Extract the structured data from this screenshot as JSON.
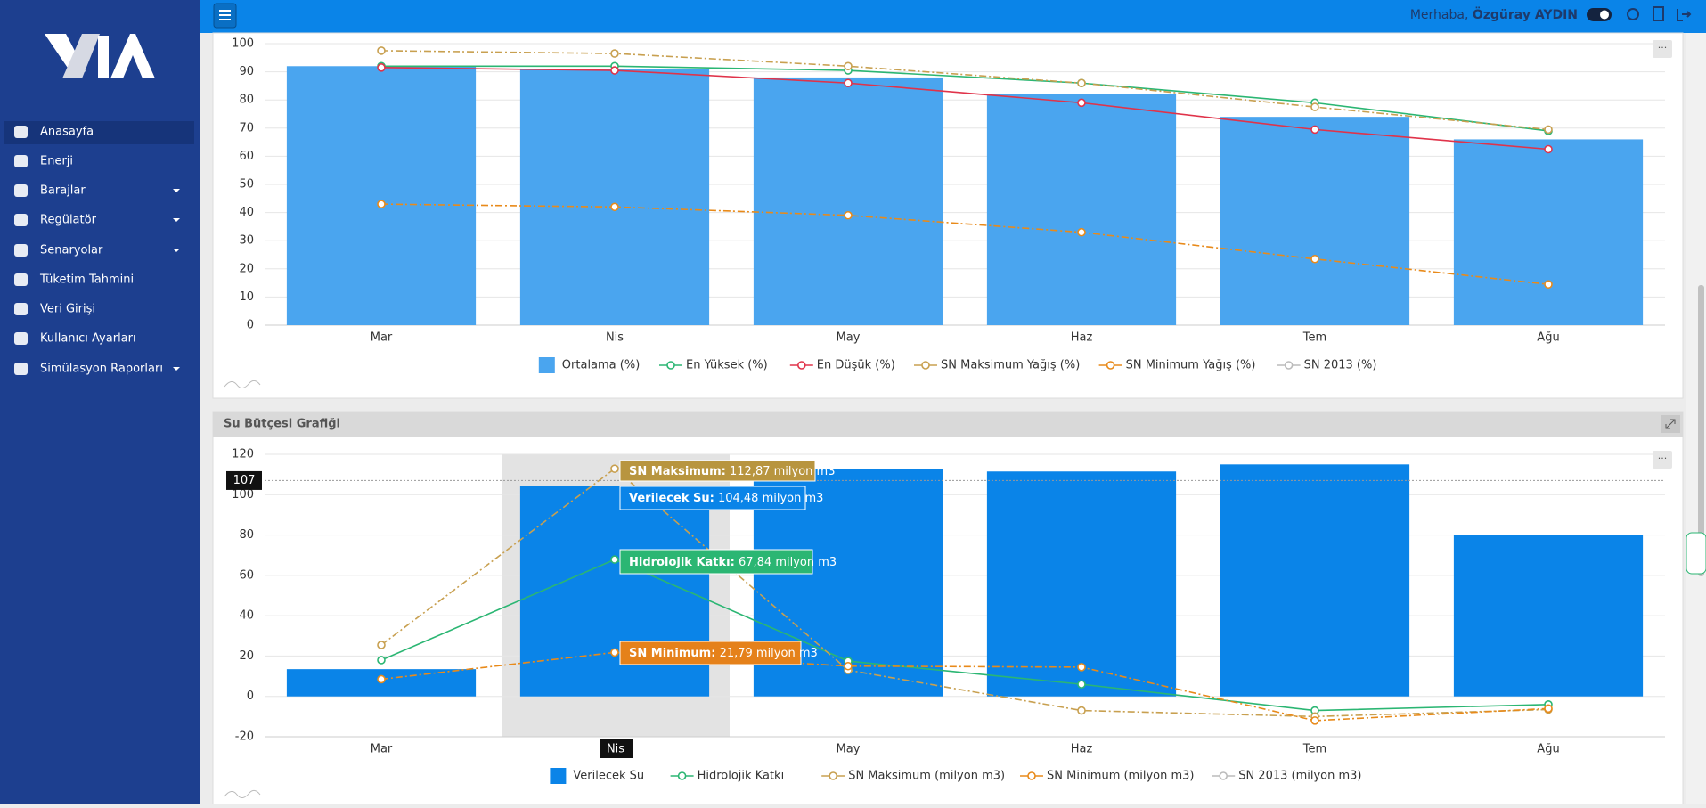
{
  "header": {
    "greeting": "Merhaba,",
    "user": "Özgüray AYDIN"
  },
  "sidebar": {
    "menu": [
      "Anasayfa",
      "Enerji",
      "Barajlar",
      "Regülatör",
      "Senaryolar",
      "Tüketim Tahmini",
      "Veri Girişi",
      "Kullanıcı Ayarları",
      "Simülasyon Raporları"
    ]
  },
  "chart_data": [
    {
      "type": "bar",
      "categories": [
        "Mar",
        "Nis",
        "May",
        "Haz",
        "Tem",
        "Ağu"
      ],
      "ylim": [
        0,
        100
      ],
      "yticks": [
        0,
        10,
        20,
        30,
        40,
        50,
        60,
        70,
        80,
        90,
        100
      ],
      "grid": true,
      "series": [
        {
          "name": "Ortalama (%)",
          "type": "bar",
          "color": "#4aa5ef",
          "values": [
            92,
            91,
            88,
            82,
            74,
            66
          ]
        },
        {
          "name": "En Yüksek (%)",
          "type": "line",
          "color": "#2bb673",
          "values": [
            92,
            92,
            90.5,
            86,
            79,
            69
          ]
        },
        {
          "name": "En Düşük (%)",
          "type": "line",
          "color": "#e0334a",
          "values": [
            91.5,
            90.5,
            86,
            79,
            69.5,
            62.5
          ]
        },
        {
          "name": "SN Maksimum Yağış (%)",
          "type": "line",
          "dash": true,
          "color": "#c8a050",
          "values": [
            97.5,
            96.5,
            92,
            86,
            77.5,
            69.5
          ]
        },
        {
          "name": "SN Minimum Yağış (%)",
          "type": "line",
          "dash": true,
          "color": "#e88a1a",
          "values": [
            43,
            42,
            39,
            33,
            23.5,
            14.5
          ]
        },
        {
          "name": "SN 2013 (%)",
          "type": "line",
          "hidden": true,
          "color": "#aaaaaa"
        }
      ]
    },
    {
      "type": "bar",
      "title": "Su Bütçesi Grafiği",
      "categories": [
        "Mar",
        "Nis",
        "May",
        "Haz",
        "Tem",
        "Ağu"
      ],
      "ylim": [
        -20,
        120
      ],
      "yticks": [
        -20,
        0,
        20,
        40,
        60,
        80,
        100,
        120
      ],
      "grid": true,
      "crosshair_y": 107,
      "tooltip": [
        "SN Maksimum:",
        "Verilecek Su:",
        "Hidrolojik Katkı:",
        "SN Minimum:"
      ],
      "series": [
        {
          "name": "Verilecek Su",
          "type": "bar",
          "color": "#0a84e8",
          "values": [
            13.5,
            104.48,
            112.5,
            111.5,
            115,
            80
          ],
          "value_labels": [
            null,
            "104,48 milyon m3",
            null,
            null,
            null,
            null
          ]
        },
        {
          "name": "Hidrolojik Katkı",
          "type": "line",
          "color": "#2bb673",
          "values": [
            18,
            67.84,
            17.5,
            6,
            -7,
            -4
          ],
          "value_labels": [
            null,
            "67,84 milyon m3",
            null,
            null,
            null,
            null
          ]
        },
        {
          "name": "SN Maksimum (milyon m3)",
          "type": "line",
          "dash": true,
          "color": "#c8a050",
          "values": [
            25.5,
            112.87,
            13,
            -7,
            -10,
            -6.5
          ],
          "value_labels": [
            null,
            "112,87 milyon m3",
            null,
            null,
            null,
            null
          ]
        },
        {
          "name": "SN Minimum (milyon m3)",
          "type": "line",
          "dash": true,
          "color": "#e88a1a",
          "values": [
            8.5,
            21.79,
            15,
            14.5,
            -12,
            -6
          ],
          "value_labels": [
            null,
            "21,79 milyon m3",
            null,
            null,
            null,
            null
          ]
        },
        {
          "name": "SN 2013 (milyon m3)",
          "type": "line",
          "hidden": true,
          "color": "#aaaaaa"
        }
      ]
    }
  ]
}
